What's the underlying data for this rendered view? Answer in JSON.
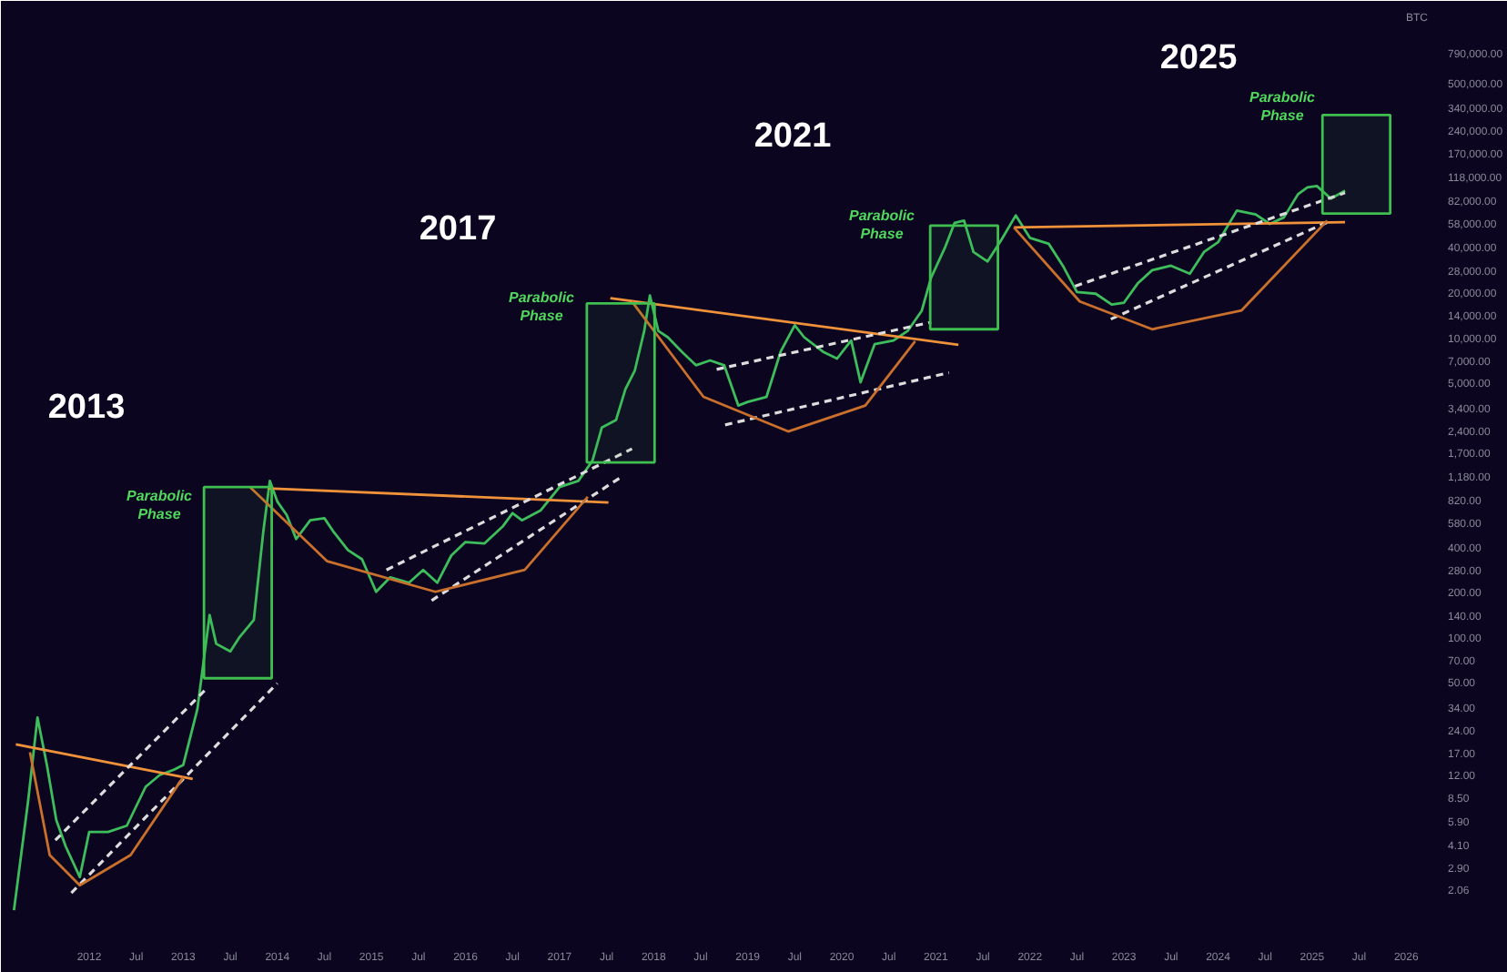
{
  "chart_data": {
    "type": "line",
    "log": "y",
    "grid": false,
    "xlim": [
      2011.1,
      2026.23
    ],
    "ylim": [
      1.06,
      1060000
    ],
    "xticks": [
      {
        "value": 2012,
        "label": "2012"
      },
      {
        "value": 2012.5,
        "label": "Jul"
      },
      {
        "value": 2013,
        "label": "2013"
      },
      {
        "value": 2013.5,
        "label": "Jul"
      },
      {
        "value": 2014,
        "label": "2014"
      },
      {
        "value": 2014.5,
        "label": "Jul"
      },
      {
        "value": 2015,
        "label": "2015"
      },
      {
        "value": 2015.5,
        "label": "Jul"
      },
      {
        "value": 2016,
        "label": "2016"
      },
      {
        "value": 2016.5,
        "label": "Jul"
      },
      {
        "value": 2017,
        "label": "2017"
      },
      {
        "value": 2017.5,
        "label": "Jul"
      },
      {
        "value": 2018,
        "label": "2018"
      },
      {
        "value": 2018.5,
        "label": "Jul"
      },
      {
        "value": 2019,
        "label": "2019"
      },
      {
        "value": 2019.5,
        "label": "Jul"
      },
      {
        "value": 2020,
        "label": "2020"
      },
      {
        "value": 2020.5,
        "label": "Jul"
      },
      {
        "value": 2021,
        "label": "2021"
      },
      {
        "value": 2021.5,
        "label": "Jul"
      },
      {
        "value": 2022,
        "label": "2022"
      },
      {
        "value": 2022.5,
        "label": "Jul"
      },
      {
        "value": 2023,
        "label": "2023"
      },
      {
        "value": 2023.5,
        "label": "Jul"
      },
      {
        "value": 2024,
        "label": "2024"
      },
      {
        "value": 2024.5,
        "label": "Jul"
      },
      {
        "value": 2025,
        "label": "2025"
      },
      {
        "value": 2025.5,
        "label": "Jul"
      },
      {
        "value": 2026,
        "label": "2026"
      }
    ],
    "yticks": [
      {
        "value": 790000,
        "label": "790,000.00"
      },
      {
        "value": 500000,
        "label": "500,000.00"
      },
      {
        "value": 340000,
        "label": "340,000.00"
      },
      {
        "value": 240000,
        "label": "240,000.00"
      },
      {
        "value": 170000,
        "label": "170,000.00"
      },
      {
        "value": 118000,
        "label": "118,000.00"
      },
      {
        "value": 82000,
        "label": "82,000.00"
      },
      {
        "value": 58000,
        "label": "58,000.00"
      },
      {
        "value": 40000,
        "label": "40,000.00"
      },
      {
        "value": 28000,
        "label": "28,000.00"
      },
      {
        "value": 20000,
        "label": "20,000.00"
      },
      {
        "value": 14000,
        "label": "14,000.00"
      },
      {
        "value": 10000,
        "label": "10,000.00"
      },
      {
        "value": 7000,
        "label": "7,000.00"
      },
      {
        "value": 5000,
        "label": "5,000.00"
      },
      {
        "value": 3400,
        "label": "3,400.00"
      },
      {
        "value": 2400,
        "label": "2,400.00"
      },
      {
        "value": 1700,
        "label": "1,700.00"
      },
      {
        "value": 1180,
        "label": "1,180.00"
      },
      {
        "value": 820,
        "label": "820.00"
      },
      {
        "value": 580,
        "label": "580.00"
      },
      {
        "value": 400,
        "label": "400.00"
      },
      {
        "value": 280,
        "label": "280.00"
      },
      {
        "value": 200,
        "label": "200.00"
      },
      {
        "value": 140,
        "label": "140.00"
      },
      {
        "value": 100,
        "label": "100.00"
      },
      {
        "value": 70,
        "label": "70.00"
      },
      {
        "value": 50,
        "label": "50.00"
      },
      {
        "value": 34,
        "label": "34.00"
      },
      {
        "value": 24,
        "label": "24.00"
      },
      {
        "value": 17,
        "label": "17.00"
      },
      {
        "value": 12,
        "label": "12.00"
      },
      {
        "value": 8.5,
        "label": "8.50"
      },
      {
        "value": 5.9,
        "label": "5.90"
      },
      {
        "value": 4.1,
        "label": "4.10"
      },
      {
        "value": 2.9,
        "label": "2.90"
      },
      {
        "value": 2.06,
        "label": "2.06"
      }
    ],
    "title": "BTC",
    "series": [
      {
        "color": "#3dbd5b",
        "x": [
          2011.2,
          2011.35,
          2011.45,
          2011.55,
          2011.65,
          2011.75,
          2011.9,
          2012.0,
          2012.2,
          2012.4,
          2012.6,
          2012.75,
          2012.9,
          2013.0,
          2013.15,
          2013.28,
          2013.35,
          2013.5,
          2013.6,
          2013.75,
          2013.85,
          2013.92,
          2014.0,
          2014.1,
          2014.2,
          2014.35,
          2014.5,
          2014.6,
          2014.75,
          2014.9,
          2015.05,
          2015.2,
          2015.4,
          2015.55,
          2015.7,
          2015.85,
          2016.0,
          2016.2,
          2016.4,
          2016.5,
          2016.6,
          2016.8,
          2017.0,
          2017.2,
          2017.35,
          2017.45,
          2017.6,
          2017.7,
          2017.8,
          2017.9,
          2017.96,
          2018.05,
          2018.15,
          2018.3,
          2018.45,
          2018.6,
          2018.75,
          2018.9,
          2019.0,
          2019.2,
          2019.35,
          2019.5,
          2019.6,
          2019.8,
          2019.95,
          2020.1,
          2020.2,
          2020.35,
          2020.55,
          2020.7,
          2020.85,
          2020.95,
          2021.1,
          2021.2,
          2021.3,
          2021.4,
          2021.55,
          2021.7,
          2021.85,
          2022.0,
          2022.2,
          2022.35,
          2022.5,
          2022.7,
          2022.87,
          2023.0,
          2023.15,
          2023.3,
          2023.5,
          2023.7,
          2023.85,
          2024.0,
          2024.2,
          2024.4,
          2024.55,
          2024.7,
          2024.85,
          2024.95,
          2025.05,
          2025.2,
          2025.35
        ],
        "values": [
          1.5,
          8,
          29,
          14,
          6,
          4,
          2.5,
          5,
          5,
          5.5,
          10,
          12,
          13,
          14,
          33,
          140,
          90,
          80,
          100,
          130,
          500,
          1100,
          800,
          650,
          450,
          600,
          620,
          500,
          380,
          330,
          200,
          250,
          230,
          280,
          230,
          350,
          430,
          420,
          550,
          670,
          600,
          700,
          1000,
          1100,
          1500,
          2500,
          2800,
          4500,
          6000,
          11000,
          19000,
          11000,
          10000,
          8000,
          6500,
          7000,
          6500,
          3500,
          3700,
          4000,
          8000,
          12000,
          10000,
          8000,
          7200,
          9500,
          5000,
          9000,
          9500,
          11000,
          15000,
          25000,
          40000,
          58000,
          60000,
          37000,
          32000,
          45000,
          65000,
          46000,
          42000,
          30000,
          20000,
          19500,
          16500,
          17000,
          23000,
          28000,
          30000,
          26500,
          37000,
          43000,
          70000,
          66000,
          57000,
          63000,
          90000,
          100000,
          102000,
          84000,
          95000
        ]
      },
      {
        "color": "#f0923a",
        "x": [
          2011.22,
          2013.1
        ],
        "values": [
          19.2,
          11.3
        ]
      },
      {
        "color": "#f0923a",
        "x": [
          2013.9,
          2017.52
        ],
        "values": [
          980,
          790
        ]
      },
      {
        "color": "#f0923a",
        "x": [
          2017.54,
          2021.24
        ],
        "values": [
          18200,
          8900
        ]
      },
      {
        "color": "#f0923a",
        "x": [
          2021.83,
          2025.35
        ],
        "values": [
          54000,
          58600
        ]
      },
      {
        "color": "#dddddd",
        "line_style": "dashed",
        "x": [
          2011.64,
          2013.26
        ],
        "values": [
          4.4,
          46
        ]
      },
      {
        "color": "#dddddd",
        "line_style": "dashed",
        "x": [
          2011.81,
          2014.0
        ],
        "values": [
          1.96,
          49
        ]
      },
      {
        "color": "#dddddd",
        "line_style": "dashed",
        "x": [
          2015.16,
          2017.77
        ],
        "values": [
          280,
          1800
        ]
      },
      {
        "color": "#dddddd",
        "line_style": "dashed",
        "x": [
          2015.64,
          2017.64
        ],
        "values": [
          175,
          1150
        ]
      },
      {
        "color": "#dddddd",
        "line_style": "dashed",
        "x": [
          2018.67,
          2020.95
        ],
        "values": [
          6100,
          12600
        ]
      },
      {
        "color": "#dddddd",
        "line_style": "dashed",
        "x": [
          2018.76,
          2021.14
        ],
        "values": [
          2600,
          5800
        ]
      },
      {
        "color": "#dddddd",
        "line_style": "dashed",
        "x": [
          2022.48,
          2025.35
        ],
        "values": [
          21900,
          92000
        ]
      },
      {
        "color": "#dddddd",
        "line_style": "dashed",
        "x": [
          2022.86,
          2025.2
        ],
        "values": [
          13200,
          60000
        ]
      },
      {
        "color": "#c8702c",
        "x": [
          2011.37,
          2011.58,
          2011.9,
          2012.44,
          2013.0
        ],
        "values": [
          17,
          3.5,
          2.2,
          3.5,
          11.6
        ]
      },
      {
        "color": "#c8702c",
        "x": [
          2013.71,
          2014.53,
          2015.68,
          2016.63,
          2017.3
        ],
        "values": [
          1000,
          320,
          200,
          280,
          860
        ]
      },
      {
        "color": "#c8702c",
        "x": [
          2017.77,
          2018.53,
          2019.43,
          2020.25,
          2020.78
        ],
        "values": [
          17300,
          4000,
          2350,
          3500,
          9400
        ]
      },
      {
        "color": "#c8702c",
        "x": [
          2021.83,
          2022.53,
          2023.3,
          2024.25,
          2025.16
        ],
        "values": [
          54000,
          17300,
          11300,
          15100,
          60000
        ]
      },
      {
        "type": "bar",
        "color": "#3fbf4f",
        "x": [
          2013.58,
          2017.65,
          2021.3,
          2025.47
        ],
        "base": [
          53,
          1460,
          11300,
          66800
        ],
        "values": [
          947,
          15340,
          44300,
          237200
        ]
      }
    ],
    "annotations": [
      "2013",
      "2017",
      "2021",
      "2025",
      "Parabolic\nPhase",
      "Parabolic\nPhase",
      "Parabolic\nPhase",
      "Parabolic\nPhase"
    ]
  }
}
